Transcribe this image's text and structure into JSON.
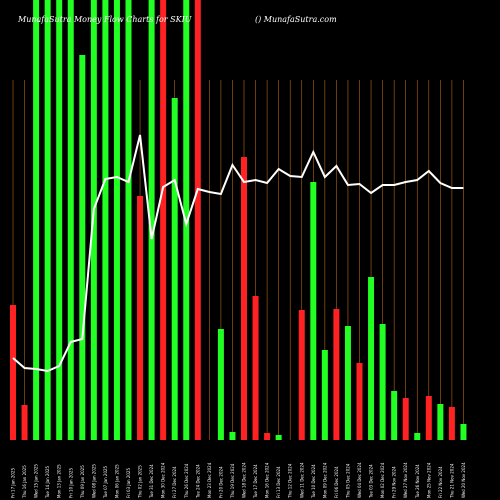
{
  "chart_data": {
    "type": "bar",
    "title": "MunafaSutra Money Flow Charts for SKIU",
    "watermark": "() MunafaSutra.com",
    "colors": {
      "background": "#000000",
      "up": "#22ff22",
      "down": "#ff2222",
      "line": "#ffffff",
      "grid": "#b5651d"
    },
    "categories": [
      "Fri 17 Jan 2025",
      "Thu 16 Jan 2025",
      "Wed 15 Jan 2025",
      "Tue 14 Jan 2025",
      "Mon 13 Jan 2025",
      "Fri 10 Jan 2025",
      "Thu 09 Jan 2025",
      "Wed 08 Jan 2025",
      "Tue 07 Jan 2025",
      "Mon 06 Jan 2025",
      "Fri 03 Jan 2025",
      "Thu 02 Jan 2025",
      "Tue 31 Dec 2024",
      "Mon 30 Dec 2024",
      "Fri 27 Dec 2024",
      "Thu 26 Dec 2024",
      "Tue 24 Dec 2024",
      "Mon 23 Dec 2024",
      "Fri 20 Dec 2024",
      "Thu 19 Dec 2024",
      "Wed 18 Dec 2024",
      "Tue 17 Dec 2024",
      "Mon 16 Dec 2024",
      "Fri 13 Dec 2024",
      "Thu 12 Dec 2024",
      "Wed 11 Dec 2024",
      "Tue 10 Dec 2024",
      "Mon 09 Dec 2024",
      "Fri 06 Dec 2024",
      "Thu 05 Dec 2024",
      "Wed 04 Dec 2024",
      "Tue 03 Dec 2024",
      "Mon 02 Dec 2024",
      "Fri 29 Nov 2024",
      "Wed 27 Nov 2024",
      "Tue 26 Nov 2024",
      "Mon 25 Nov 2024",
      "Fri 22 Nov 2024",
      "Thu 21 Nov 2024",
      "Wed 20 Nov 2024"
    ],
    "bar_colors": [
      "down",
      "down",
      "up",
      "up",
      "up",
      "up",
      "up",
      "up",
      "up",
      "up",
      "up",
      "down",
      "up",
      "down",
      "up",
      "up",
      "down",
      "down",
      "up",
      "up",
      "down",
      "down",
      "down",
      "up",
      "down",
      "down",
      "up",
      "up",
      "down",
      "up",
      "down",
      "up",
      "up",
      "up",
      "down",
      "up",
      "down",
      "up",
      "down",
      "up"
    ],
    "volume": [
      135,
      35,
      440,
      440,
      440,
      440,
      385,
      440,
      440,
      440,
      440,
      244,
      440,
      440,
      342,
      440,
      440,
      0,
      111,
      8,
      283,
      144,
      7,
      5,
      0,
      130,
      258,
      90,
      131,
      114,
      77,
      163,
      116,
      49,
      42,
      7,
      44,
      36,
      33,
      16
    ],
    "money_flow": [
      82,
      72,
      71,
      69,
      74,
      98,
      101,
      231,
      261,
      263,
      258,
      305,
      201,
      253,
      260,
      216,
      251,
      248,
      246,
      275,
      258,
      260,
      257,
      271,
      264,
      263,
      288,
      263,
      274,
      255,
      256,
      247,
      255,
      255,
      258,
      260,
      269,
      257,
      252,
      252
    ],
    "ylim": [
      0,
      440
    ]
  }
}
